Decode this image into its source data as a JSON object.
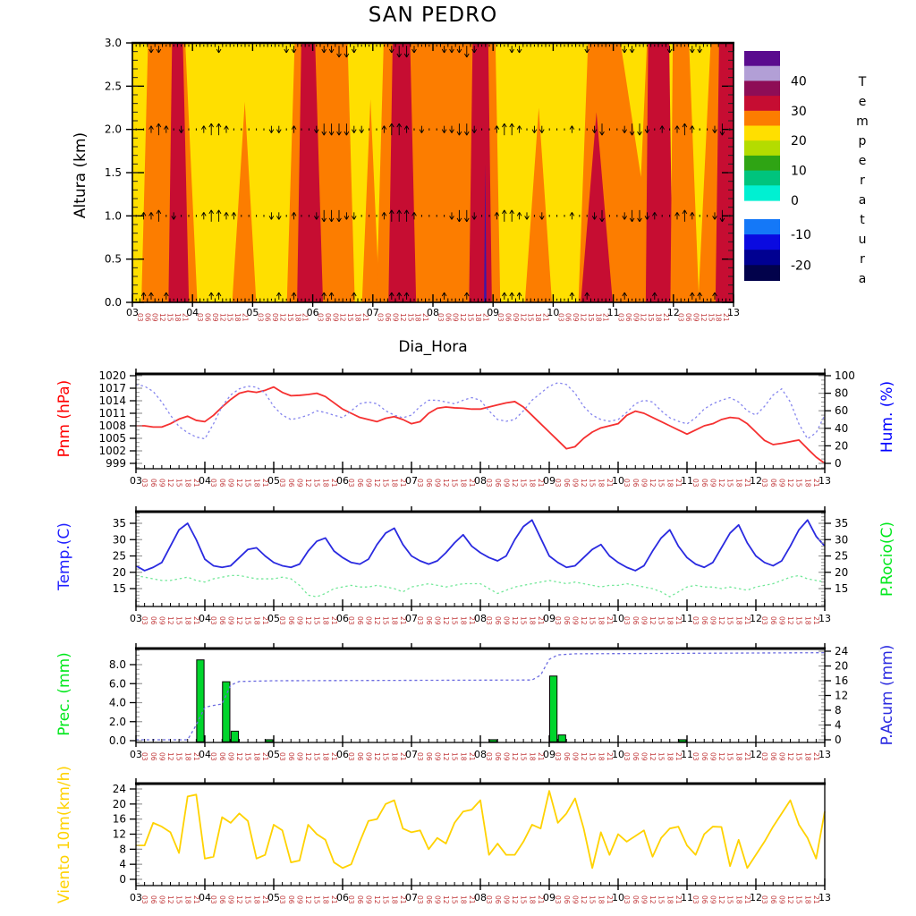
{
  "title": "SAN PEDRO",
  "xaxis": {
    "label": "Dia_Hora",
    "day_labels": [
      "03",
      "04",
      "05",
      "06",
      "07",
      "08",
      "09",
      "10",
      "11",
      "12",
      "13"
    ],
    "hour_labels": [
      "03",
      "06",
      "09",
      "12",
      "15",
      "18",
      "21"
    ],
    "hour_label_color": "#c1393b"
  },
  "chart_data": [
    {
      "type": "heatmap",
      "id": "temperature-height-section",
      "title": "SAN PEDRO",
      "xlabel": "Dia_Hora",
      "ylabel": "Altura (km)",
      "x_range": [
        3,
        13
      ],
      "y_range": [
        0,
        3
      ],
      "yticks": [
        "0.0",
        "0.5",
        "1.0",
        "1.5",
        "2.0",
        "2.5",
        "3.0"
      ],
      "band_colors": {
        "Y": "#ffdf00",
        "O": "#fc7d00",
        "R": "#c60d32",
        "P": "#3a16aa"
      },
      "bands": [
        {
          "c": "O",
          "pts": [
            [
              3.15,
              0
            ],
            [
              3.26,
              3
            ],
            [
              3.88,
              3
            ],
            [
              4.08,
              0
            ]
          ]
        },
        {
          "c": "R",
          "pts": [
            [
              3.6,
              0
            ],
            [
              3.66,
              3
            ],
            [
              3.84,
              3
            ],
            [
              3.94,
              0
            ]
          ]
        },
        {
          "c": "O",
          "pts": [
            [
              4.66,
              0
            ],
            [
              4.87,
              2.32
            ],
            [
              5.06,
              0
            ]
          ]
        },
        {
          "c": "O",
          "pts": [
            [
              5.57,
              0
            ],
            [
              5.7,
              3
            ],
            [
              6.58,
              3
            ],
            [
              6.7,
              0
            ]
          ]
        },
        {
          "c": "R",
          "pts": [
            [
              5.74,
              0
            ],
            [
              5.81,
              3
            ],
            [
              6.04,
              3
            ],
            [
              6.17,
              0
            ]
          ]
        },
        {
          "c": "O",
          "pts": [
            [
              6.82,
              0
            ],
            [
              6.96,
              2.35
            ],
            [
              7.11,
              0
            ]
          ]
        },
        {
          "c": "O",
          "pts": [
            [
              7.06,
              0
            ],
            [
              7.18,
              3
            ],
            [
              9.04,
              3
            ],
            [
              9.12,
              0
            ]
          ]
        },
        {
          "c": "R",
          "pts": [
            [
              7.26,
              0
            ],
            [
              7.33,
              3
            ],
            [
              7.62,
              3
            ],
            [
              7.72,
              0
            ]
          ]
        },
        {
          "c": "R",
          "pts": [
            [
              8.6,
              0
            ],
            [
              8.66,
              3
            ],
            [
              8.92,
              3
            ],
            [
              8.98,
              0
            ]
          ]
        },
        {
          "c": "P",
          "pts": [
            [
              8.85,
              0
            ],
            [
              8.87,
              1.6
            ],
            [
              8.89,
              0
            ]
          ]
        },
        {
          "c": "O",
          "pts": [
            [
              9.53,
              0
            ],
            [
              9.76,
              2.25
            ],
            [
              9.98,
              0
            ]
          ]
        },
        {
          "c": "O",
          "pts": [
            [
              10.42,
              0
            ],
            [
              10.58,
              3
            ],
            [
              11.6,
              3
            ],
            [
              11.6,
              0
            ]
          ]
        },
        {
          "c": "R",
          "pts": [
            [
              10.46,
              0
            ],
            [
              10.72,
              2.2
            ],
            [
              10.99,
              0
            ]
          ]
        },
        {
          "c": "Y",
          "pts": [
            [
              11.12,
              3
            ],
            [
              11.56,
              3
            ],
            [
              11.46,
              1.45
            ]
          ]
        },
        {
          "c": "R",
          "pts": [
            [
              11.54,
              0
            ],
            [
              11.58,
              3
            ],
            [
              11.93,
              3
            ],
            [
              11.99,
              0
            ]
          ]
        },
        {
          "c": "O",
          "pts": [
            [
              11.95,
              0
            ],
            [
              11.99,
              3
            ],
            [
              13,
              3
            ],
            [
              13,
              0
            ]
          ]
        },
        {
          "c": "Y",
          "pts": [
            [
              12.26,
              3
            ],
            [
              12.62,
              3
            ],
            [
              12.42,
              0.1
            ]
          ]
        },
        {
          "c": "R",
          "pts": [
            [
              12.7,
              0
            ],
            [
              12.76,
              3
            ],
            [
              13,
              3
            ],
            [
              13,
              0
            ]
          ]
        }
      ],
      "wind_arrows": {
        "alt_rows": [
          3,
          2,
          1,
          0
        ],
        "pattern": {
          "3": "..dd.......d........dd...ddDDd....dDDd...dddDd....dd........d....dd....d..dd.",
          "2": "..uUu.d..uUUu.....dd.u..dDDDDdd..uUUu.d..ddDDd..uUUu.dd...u..dD..dDDd.u.uUu..dD.",
          "1": ".uuU.d...uUUuu....dd.u..dDDDdd...uUUUu....dDDd..uUUud.d...u..dD..dDDdu..uUu..dD.",
          "0": ".uu.u.....uu.......u.u...uu..u....uuu....u..u....uuu......u.u....u...u....uu.u.."
        }
      },
      "colorbar": {
        "title": "Temperatura",
        "labels": [
          "40",
          "30",
          "20",
          "10",
          "0",
          "-10",
          "-20"
        ],
        "colors": [
          "#5a0b8e",
          "#b29fd6",
          "#8e0d56",
          "#c60d32",
          "#fc7d00",
          "#ffdf00",
          "#b4dc00",
          "#2fa414",
          "#00c47d",
          "#00f0d2",
          "#1478f8",
          "#0a0ae0",
          "#000091",
          "#02024b"
        ]
      }
    },
    {
      "type": "line",
      "id": "pressure-humidity",
      "x_start_day": 3,
      "x_end_day": 13,
      "x_step_hours": 3,
      "left_axis": {
        "label": "Pnm (hPa)",
        "color": "#ff0000",
        "ticks": [
          "1020",
          "1017",
          "1014",
          "1011",
          "1008",
          "1005",
          "1002",
          "999"
        ]
      },
      "right_axis": {
        "label": "Hum. (%)",
        "color": "#0000ff",
        "ticks": [
          "100",
          "80",
          "60",
          "40",
          "20",
          "0"
        ]
      },
      "series": [
        {
          "name": "Pnm",
          "axis": "left",
          "style": "solid",
          "color": "#f53030",
          "values": [
            1008,
            1008,
            1007.7,
            1007.7,
            1008.5,
            1009.6,
            1010.3,
            1009.3,
            1009,
            1010.5,
            1012.5,
            1014.3,
            1015.8,
            1016.3,
            1016,
            1016.5,
            1017.3,
            1016,
            1015.2,
            1015.3,
            1015.5,
            1015.8,
            1015,
            1013.5,
            1012,
            1011,
            1010,
            1009.5,
            1009,
            1009.8,
            1010.2,
            1009.5,
            1008.5,
            1009,
            1011,
            1012.2,
            1012.5,
            1012.3,
            1012.2,
            1012,
            1012,
            1012.5,
            1013,
            1013.5,
            1013.8,
            1012.5,
            1010.5,
            1008.5,
            1006.5,
            1004.5,
            1002.5,
            1003,
            1005,
            1006.5,
            1007.5,
            1008,
            1008.5,
            1010.5,
            1011.5,
            1011,
            1010,
            1009,
            1008,
            1007,
            1006,
            1007,
            1008,
            1008.5,
            1009.5,
            1010,
            1009.8,
            1008.5,
            1006.5,
            1004.5,
            1003.5,
            1003.8,
            1004.2,
            1004.6,
            1002.5,
            1000.5,
            999
          ]
        },
        {
          "name": "Hum",
          "axis": "right",
          "style": "dashed",
          "color": "#8585ee",
          "values": [
            90,
            88,
            82,
            70,
            55,
            42,
            35,
            30,
            28,
            45,
            65,
            78,
            85,
            88,
            87,
            80,
            65,
            55,
            50,
            52,
            55,
            60,
            58,
            55,
            52,
            60,
            68,
            70,
            68,
            60,
            55,
            52,
            55,
            65,
            72,
            72,
            70,
            68,
            72,
            75,
            72,
            60,
            50,
            48,
            50,
            60,
            72,
            80,
            88,
            92,
            90,
            80,
            65,
            55,
            50,
            48,
            50,
            58,
            68,
            72,
            70,
            60,
            52,
            48,
            45,
            52,
            62,
            68,
            72,
            75,
            70,
            60,
            55,
            65,
            78,
            85,
            70,
            45,
            28,
            35,
            55
          ]
        }
      ]
    },
    {
      "type": "line",
      "id": "temperature-dewpoint",
      "x_start_day": 3,
      "x_end_day": 13,
      "x_step_hours": 3,
      "left_axis": {
        "label": "Temp.(C)",
        "color": "#2a2ae0",
        "ticks": [
          "35",
          "30",
          "25",
          "20",
          "15"
        ]
      },
      "right_axis": {
        "label": "P.Rocio(C)",
        "color": "#00e81c",
        "ticks": [
          "35",
          "30",
          "25",
          "20",
          "15"
        ]
      },
      "series": [
        {
          "name": "Temp",
          "axis": "left",
          "style": "solid",
          "color": "#2a2ae0",
          "values": [
            22,
            20.5,
            21.5,
            23,
            28,
            33,
            35,
            30,
            24,
            22,
            21.5,
            22,
            24.5,
            27,
            27.5,
            25,
            23,
            22,
            21.5,
            22.5,
            26.5,
            29.5,
            30.5,
            26.5,
            24.5,
            23,
            22.5,
            24,
            28.5,
            32,
            33.5,
            28.5,
            25,
            23.5,
            22.5,
            23.5,
            26,
            29,
            31.5,
            28,
            26,
            24.5,
            23.5,
            25,
            30,
            34,
            36,
            30.5,
            25,
            23,
            21.5,
            22,
            24.5,
            27,
            28.5,
            25,
            23,
            21.5,
            20.5,
            22,
            26.5,
            30.5,
            33,
            28,
            24.5,
            22.5,
            21.5,
            23,
            27.5,
            32,
            34.5,
            29,
            25,
            23,
            22,
            23.5,
            28,
            33,
            36,
            31,
            28
          ]
        },
        {
          "name": "P.Rocio",
          "axis": "right",
          "style": "dashed",
          "color": "#74e89a",
          "values": [
            19,
            18.5,
            18,
            17.5,
            17.5,
            18,
            18.5,
            17.5,
            17,
            18,
            18.5,
            19,
            19,
            18.5,
            18,
            18,
            18,
            18.5,
            18,
            16,
            13,
            12.5,
            13.5,
            15,
            15.5,
            16,
            15.5,
            15.5,
            16,
            15.5,
            15,
            14,
            15.5,
            16,
            16.5,
            16,
            15.5,
            16,
            16.5,
            16.5,
            16.5,
            15,
            13.5,
            14.5,
            15.5,
            16,
            16.5,
            17,
            17.5,
            17,
            16.5,
            17,
            16.5,
            16,
            15.5,
            16,
            16,
            16.5,
            16,
            15.5,
            15,
            14,
            12.5,
            14,
            15.5,
            16,
            15.5,
            15.5,
            15,
            15.5,
            15,
            14.5,
            15.5,
            16,
            16.5,
            17.5,
            18.5,
            19,
            18,
            17.5,
            17
          ]
        }
      ]
    },
    {
      "type": "bar+line",
      "id": "precipitation",
      "left_axis": {
        "label": "Prec. (mm)",
        "color": "#00e81c",
        "ticks": [
          "8.0",
          "6.0",
          "4.0",
          "2.0",
          "0.0"
        ]
      },
      "right_axis": {
        "label": "P.Acum (mm)",
        "color": "#2a2ae0",
        "ticks": [
          "24",
          "20",
          "16",
          "12",
          "8",
          "4",
          "0"
        ]
      },
      "bars": {
        "color": "#00d52c",
        "data": [
          {
            "day": 3.875,
            "value": 8.5
          },
          {
            "day": 4.25,
            "value": 6.2
          },
          {
            "day": 4.375,
            "value": 1.0
          },
          {
            "day": 4.875,
            "value": 0.1
          },
          {
            "day": 8.125,
            "value": 0.1
          },
          {
            "day": 9.0,
            "value": 6.8
          },
          {
            "day": 9.125,
            "value": 0.6
          },
          {
            "day": 10.875,
            "value": 0.1
          }
        ]
      },
      "acum_line": {
        "color": "#6b6be0",
        "style": "dashed",
        "points": [
          [
            3,
            0
          ],
          [
            3.75,
            0
          ],
          [
            3.875,
            4
          ],
          [
            4,
            8.8
          ],
          [
            4.125,
            9.3
          ],
          [
            4.25,
            9.7
          ],
          [
            4.375,
            14.8
          ],
          [
            4.5,
            15.8
          ],
          [
            5,
            16
          ],
          [
            8.75,
            16.2
          ],
          [
            8.875,
            17.5
          ],
          [
            9,
            21.8
          ],
          [
            9.125,
            23
          ],
          [
            9.375,
            23.3
          ],
          [
            13,
            23.6
          ]
        ]
      }
    },
    {
      "type": "line",
      "id": "wind",
      "x_start_day": 3,
      "x_end_day": 13,
      "x_step_hours": 3,
      "left_axis": {
        "label": "Viento 10m(km/h)",
        "color": "#ffd200",
        "ticks": [
          "24",
          "20",
          "16",
          "12",
          "8",
          "4",
          "0"
        ]
      },
      "series": [
        {
          "name": "Viento",
          "axis": "left",
          "style": "solid",
          "color": "#ffd200",
          "values": [
            9,
            9,
            15,
            14,
            12.5,
            7,
            22,
            22.5,
            5.5,
            6,
            16.5,
            15,
            17.5,
            15.5,
            5.5,
            6.5,
            14.5,
            13,
            4.5,
            5,
            14.5,
            12,
            10.5,
            4.5,
            3,
            4,
            10,
            15.5,
            16,
            20,
            21,
            13.5,
            12.5,
            13,
            8,
            11,
            9.5,
            15,
            18,
            18.5,
            21,
            6.5,
            9.5,
            6.5,
            6.5,
            10,
            14.5,
            13.5,
            23.5,
            15,
            17.5,
            21.5,
            13.5,
            3,
            12.5,
            6.5,
            12,
            10,
            11.5,
            13,
            6,
            11,
            13.5,
            14,
            9,
            6.5,
            12,
            14,
            13.9,
            3.5,
            10.5,
            3,
            6.5,
            10,
            14,
            17.5,
            21,
            14.5,
            11,
            5.5,
            18
          ]
        }
      ]
    }
  ]
}
